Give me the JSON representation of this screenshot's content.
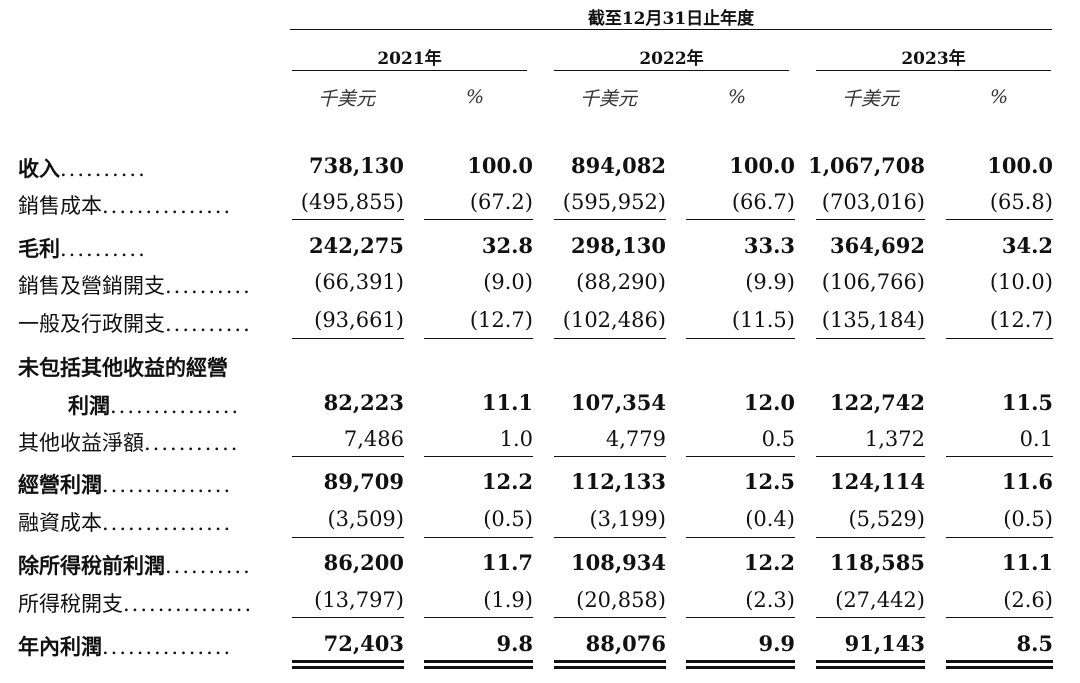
{
  "header": {
    "period_label": "截至12月31日止年度",
    "years": [
      "2021年",
      "2022年",
      "2023年"
    ],
    "unit_amount": "千美元",
    "unit_pct": "%"
  },
  "rows": [
    {
      "label": "收入",
      "leader": "..........",
      "bold": true,
      "v": [
        "738,130",
        "100.0",
        "894,082",
        "100.0",
        "1,067,708",
        "100.0"
      ]
    },
    {
      "label": "銷售成本",
      "leader": "...............",
      "bold": false,
      "v": [
        "(495,855)",
        "(67.2)",
        "(595,952)",
        "(66.7)",
        "(703,016)",
        "(65.8)"
      ]
    },
    {
      "label": "毛利",
      "leader": "..........",
      "bold": true,
      "v": [
        "242,275",
        "32.8",
        "298,130",
        "33.3",
        "364,692",
        "34.2"
      ]
    },
    {
      "label": "銷售及營銷開支",
      "leader": "..........",
      "bold": false,
      "v": [
        "(66,391)",
        "(9.0)",
        "(88,290)",
        "(9.9)",
        "(106,766)",
        "(10.0)"
      ]
    },
    {
      "label": "一般及行政開支",
      "leader": "..........",
      "bold": false,
      "v": [
        "(93,661)",
        "(12.7)",
        "(102,486)",
        "(11.5)",
        "(135,184)",
        "(12.7)"
      ]
    },
    {
      "label": "未包括其他收益的經營",
      "leader": "",
      "bold": true,
      "v": []
    },
    {
      "label": "利潤",
      "leader": "...............",
      "bold": true,
      "v": [
        "82,223",
        "11.1",
        "107,354",
        "12.0",
        "122,742",
        "11.5"
      ]
    },
    {
      "label": "其他收益淨額",
      "leader": "...........",
      "bold": false,
      "v": [
        "7,486",
        "1.0",
        "4,779",
        "0.5",
        "1,372",
        "0.1"
      ]
    },
    {
      "label": "經營利潤",
      "leader": "...............",
      "bold": true,
      "v": [
        "89,709",
        "12.2",
        "112,133",
        "12.5",
        "124,114",
        "11.6"
      ]
    },
    {
      "label": "融資成本",
      "leader": "...............",
      "bold": false,
      "v": [
        "(3,509)",
        "(0.5)",
        "(3,199)",
        "(0.4)",
        "(5,529)",
        "(0.5)"
      ]
    },
    {
      "label": "除所得稅前利潤",
      "leader": "..........",
      "bold": true,
      "v": [
        "86,200",
        "11.7",
        "108,934",
        "12.2",
        "118,585",
        "11.1"
      ]
    },
    {
      "label": "所得稅開支",
      "leader": "...............",
      "bold": false,
      "v": [
        "(13,797)",
        "(1.9)",
        "(20,858)",
        "(2.3)",
        "(27,442)",
        "(2.6)"
      ]
    },
    {
      "label": "年內利潤",
      "leader": "...............",
      "bold": true,
      "v": [
        "72,403",
        "9.8",
        "88,076",
        "9.9",
        "91,143",
        "8.5"
      ]
    }
  ]
}
